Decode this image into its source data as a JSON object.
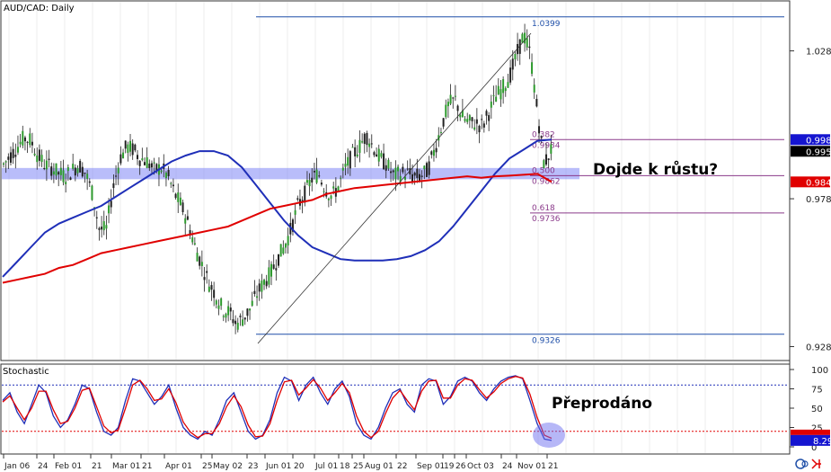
{
  "main_panel": {
    "title": "AUD/CAD: Daily",
    "annotation": "Dojde k růstu?",
    "price_ticks": [
      "1.0284",
      "0.9784",
      "0.9284"
    ],
    "price_badges": [
      {
        "label": "0.9984",
        "value": 0.9984,
        "bg": "#1515d0",
        "fg": "#ffffff"
      },
      {
        "label": "0.9950",
        "value": 0.995,
        "bg": "#000000",
        "fg": "#ffffff"
      },
      {
        "label": "0.9841",
        "value": 0.9841,
        "bg": "#e00000",
        "fg": "#ffffff"
      }
    ],
    "fib_levels": [
      {
        "ratio": "",
        "value": 1.0399,
        "label": "1.0399",
        "color": "#1f4fa8"
      },
      {
        "ratio": "0.382",
        "value": 0.9984,
        "label": "0.9984",
        "color": "#8a3a8a"
      },
      {
        "ratio": "0.500",
        "value": 0.9862,
        "label": "0.9862",
        "color": "#8a3a8a"
      },
      {
        "ratio": "0.618",
        "value": 0.9736,
        "label": "0.9736",
        "color": "#8a3a8a"
      },
      {
        "ratio": "",
        "value": 0.9326,
        "label": "0.9326",
        "color": "#1f4fa8"
      }
    ],
    "zone": {
      "low": 0.985,
      "high": 0.9888,
      "color": "#7f86f5"
    }
  },
  "stochastic_panel": {
    "title": "Stochastic",
    "annotation": "Přeprodáno",
    "ticks": [
      "100",
      "75",
      "50",
      "25",
      "0"
    ],
    "badge": {
      "label": "8.29",
      "value": 8.29,
      "bg": "#1515d0",
      "fg": "#ffffff"
    },
    "overbought": 80,
    "oversold": 20
  },
  "x_axis": {
    "labels": [
      "Jan 06",
      "24",
      "Feb 01",
      "21",
      "Mar 01",
      "21",
      "Apr 01",
      "25",
      "May 02",
      "23",
      "Jun 01",
      "20",
      "Jul 01",
      "18",
      "25",
      "Aug 01",
      "22",
      "Sep 01",
      "19",
      "26",
      "Oct 03",
      "24",
      "Nov 01",
      "21"
    ]
  },
  "chart_data": [
    {
      "type": "candlestick",
      "title": "AUD/CAD: Daily",
      "xlabel": "",
      "ylabel": "",
      "ylim": [
        0.924,
        1.045
      ],
      "grid": true,
      "legend": "none",
      "series": [
        {
          "name": "",
          "kind": "price",
          "color": "#222222",
          "values": [
            0.99,
            0.993,
            0.996,
            0.999,
            0.998,
            0.993,
            0.99,
            0.989,
            0.987,
            0.986,
            0.988,
            0.99,
            0.987,
            0.98,
            0.968,
            0.968,
            0.982,
            0.992,
            0.996,
            0.995,
            0.992,
            0.991,
            0.988,
            0.989,
            0.986,
            0.98,
            0.976,
            0.97,
            0.962,
            0.956,
            0.95,
            0.946,
            0.941,
            0.94,
            0.936,
            0.938,
            0.941,
            0.946,
            0.95,
            0.953,
            0.958,
            0.962,
            0.968,
            0.976,
            0.98,
            0.985,
            0.987,
            0.982,
            0.979,
            0.983,
            0.989,
            0.993,
            0.996,
            1.0,
            0.996,
            0.992,
            0.99,
            0.986,
            0.987,
            0.987,
            0.986,
            0.986,
            0.988,
            0.995,
            1.003,
            1.01,
            1.012,
            1.006,
            1.004,
            1.004,
            1.003,
            1.008,
            1.013,
            1.016,
            1.02,
            1.027,
            1.034,
            1.027,
            1.008,
            0.99,
            0.995
          ]
        },
        {
          "name": "",
          "kind": "moving-average",
          "color": "#1f2fb8",
          "values": [
            0.952,
            0.957,
            0.962,
            0.967,
            0.97,
            0.972,
            0.974,
            0.976,
            0.979,
            0.982,
            0.985,
            0.988,
            0.991,
            0.993,
            0.9945,
            0.9945,
            0.993,
            0.989,
            0.983,
            0.977,
            0.971,
            0.966,
            0.962,
            0.96,
            0.958,
            0.9575,
            0.9575,
            0.9575,
            0.958,
            0.959,
            0.961,
            0.964,
            0.969,
            0.975,
            0.981,
            0.987,
            0.992,
            0.995,
            0.998,
            0.9984
          ]
        },
        {
          "name": "",
          "kind": "moving-average",
          "color": "#e00000",
          "values": [
            0.95,
            0.951,
            0.952,
            0.953,
            0.955,
            0.956,
            0.958,
            0.96,
            0.961,
            0.962,
            0.963,
            0.964,
            0.965,
            0.966,
            0.967,
            0.968,
            0.969,
            0.971,
            0.973,
            0.975,
            0.976,
            0.977,
            0.978,
            0.98,
            0.981,
            0.982,
            0.9825,
            0.983,
            0.9835,
            0.984,
            0.9845,
            0.985,
            0.9855,
            0.986,
            0.9855,
            0.986,
            0.9862,
            0.9865,
            0.9868,
            0.9841
          ]
        }
      ]
    },
    {
      "type": "line",
      "title": "Stochastic",
      "xlabel": "",
      "ylabel": "",
      "ylim": [
        0,
        100
      ],
      "grid": true,
      "legend": "none",
      "series": [
        {
          "name": "",
          "color": "#1f2fb8",
          "values": [
            60,
            70,
            45,
            30,
            55,
            80,
            70,
            40,
            25,
            35,
            55,
            80,
            75,
            45,
            20,
            15,
            25,
            60,
            88,
            85,
            70,
            55,
            65,
            80,
            50,
            25,
            15,
            10,
            20,
            15,
            35,
            60,
            70,
            45,
            20,
            10,
            15,
            35,
            70,
            90,
            85,
            60,
            80,
            90,
            70,
            55,
            75,
            85,
            65,
            30,
            15,
            10,
            25,
            50,
            70,
            75,
            55,
            45,
            80,
            88,
            85,
            55,
            65,
            85,
            90,
            85,
            70,
            60,
            75,
            85,
            90,
            92,
            88,
            60,
            30,
            10,
            8.29
          ]
        },
        {
          "name": "",
          "color": "#e00000",
          "values": [
            58,
            66,
            50,
            35,
            50,
            72,
            72,
            48,
            30,
            33,
            50,
            73,
            76,
            52,
            27,
            18,
            22,
            50,
            80,
            86,
            75,
            60,
            62,
            75,
            57,
            32,
            19,
            12,
            17,
            17,
            30,
            52,
            66,
            52,
            28,
            13,
            14,
            30,
            60,
            84,
            86,
            67,
            76,
            87,
            76,
            60,
            70,
            82,
            70,
            40,
            20,
            12,
            20,
            43,
            63,
            73,
            60,
            48,
            72,
            85,
            86,
            63,
            63,
            80,
            88,
            86,
            74,
            63,
            71,
            82,
            88,
            91,
            89,
            68,
            38,
            15,
            11
          ]
        }
      ]
    }
  ]
}
